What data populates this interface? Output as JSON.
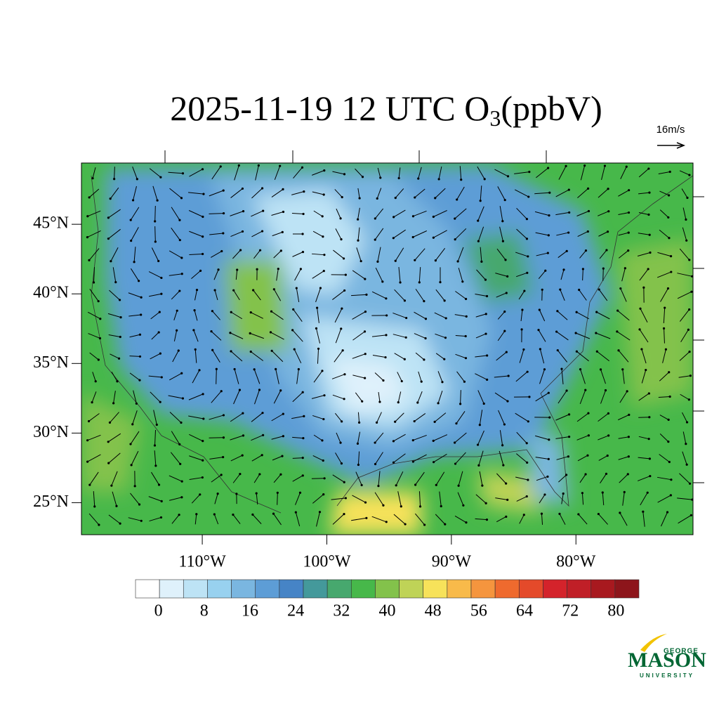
{
  "chart_data": {
    "type": "map",
    "title": {
      "main": "2025-11-19 12 UTC O",
      "subscript": "3",
      "unit": "(ppbV)"
    },
    "wind_reference": "16m/s",
    "xlim": [
      -119.7,
      -70.6
    ],
    "ylim": [
      22.7,
      49.4
    ],
    "xticks": [
      {
        "value": -110,
        "label": "110°W"
      },
      {
        "value": -100,
        "label": "100°W"
      },
      {
        "value": -90,
        "label": "90°W"
      },
      {
        "value": -80,
        "label": "80°W"
      }
    ],
    "yticks": [
      {
        "value": 45,
        "label": "45°N"
      },
      {
        "value": 40,
        "label": "40°N"
      },
      {
        "value": 35,
        "label": "35°N"
      },
      {
        "value": 30,
        "label": "30°N"
      },
      {
        "value": 25,
        "label": "25°N"
      }
    ],
    "colorbar": {
      "lim": [
        -4,
        84
      ],
      "ticks": [
        0,
        8,
        16,
        24,
        32,
        40,
        48,
        56,
        64,
        72,
        80
      ],
      "colors": [
        "#ffffff",
        "#dff1fb",
        "#bde3f5",
        "#98d1ef",
        "#7ab6e0",
        "#5d9dd6",
        "#4684c6",
        "#44999b",
        "#47a86e",
        "#47b84a",
        "#83c24b",
        "#bfd357",
        "#f7e25a",
        "#f8ba4a",
        "#f5953e",
        "#ef6a2e",
        "#e44a2a",
        "#d4232b",
        "#c01f27",
        "#a8191f",
        "#8d151b"
      ]
    },
    "logo": {
      "top": "GEORGE",
      "main": "MASON",
      "bottom": "UNIVERSITY"
    }
  }
}
